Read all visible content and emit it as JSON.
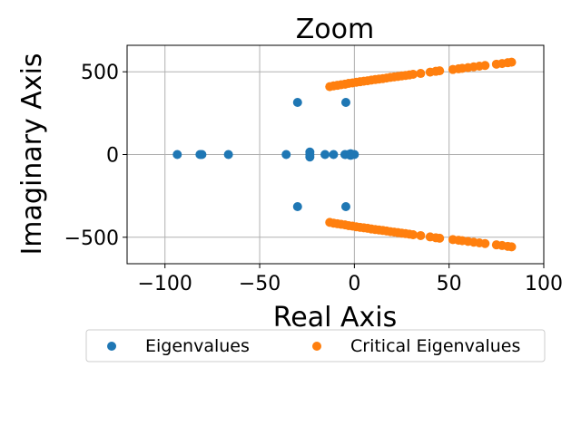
{
  "chart_data": {
    "type": "scatter",
    "title": "Zoom",
    "xlabel": "Real Axis",
    "ylabel": "Imaginary Axis",
    "xlim": [
      -120,
      100
    ],
    "ylim": [
      -660,
      660
    ],
    "xticks": [
      -100,
      -50,
      0,
      50,
      100
    ],
    "xtick_labels": [
      "−100",
      "−50",
      "0",
      "50",
      "100"
    ],
    "yticks": [
      -500,
      0,
      500
    ],
    "ytick_labels": [
      "−500",
      "0",
      "500"
    ],
    "grid": true,
    "legend": {
      "position": "below",
      "ncol": 2
    },
    "series": [
      {
        "name": "Eigenvalues",
        "color": "#1f77b4",
        "points": [
          [
            -93.5,
            0
          ],
          [
            -80.5,
            0
          ],
          [
            -81.5,
            0
          ],
          [
            -66.5,
            0
          ],
          [
            -36,
            0
          ],
          [
            -30,
            315
          ],
          [
            -30,
            -315
          ],
          [
            -23.5,
            15
          ],
          [
            -23.5,
            -15
          ],
          [
            -23.5,
            0
          ],
          [
            -15.5,
            0
          ],
          [
            -11,
            0
          ],
          [
            -5,
            0
          ],
          [
            -4.5,
            315
          ],
          [
            -4.5,
            -315
          ],
          [
            -3,
            0
          ],
          [
            -2,
            5
          ],
          [
            -2,
            -5
          ],
          [
            -1,
            0
          ],
          [
            0,
            0
          ]
        ]
      },
      {
        "name": "Critical Eigenvalues",
        "color": "#ff7f0e",
        "points": [
          [
            -13,
            410
          ],
          [
            -11,
            415
          ],
          [
            -9,
            418
          ],
          [
            -7,
            422
          ],
          [
            -5,
            425
          ],
          [
            -3,
            430
          ],
          [
            -1,
            433
          ],
          [
            1,
            437
          ],
          [
            3,
            440
          ],
          [
            5,
            443
          ],
          [
            7,
            446
          ],
          [
            9,
            450
          ],
          [
            11,
            453
          ],
          [
            13,
            456
          ],
          [
            15,
            459
          ],
          [
            17,
            462
          ],
          [
            19,
            466
          ],
          [
            21,
            469
          ],
          [
            23,
            472
          ],
          [
            25,
            475
          ],
          [
            27,
            478
          ],
          [
            29,
            481
          ],
          [
            31,
            485
          ],
          [
            35,
            490
          ],
          [
            40,
            498
          ],
          [
            43,
            503
          ],
          [
            45,
            506
          ],
          [
            52,
            514
          ],
          [
            55,
            518
          ],
          [
            57,
            521
          ],
          [
            60,
            525
          ],
          [
            63,
            530
          ],
          [
            66,
            534
          ],
          [
            69,
            538
          ],
          [
            75,
            546
          ],
          [
            78,
            550
          ],
          [
            81,
            555
          ],
          [
            83,
            558
          ],
          [
            -13,
            -410
          ],
          [
            -11,
            -415
          ],
          [
            -9,
            -418
          ],
          [
            -7,
            -422
          ],
          [
            -5,
            -425
          ],
          [
            -3,
            -430
          ],
          [
            -1,
            -433
          ],
          [
            1,
            -437
          ],
          [
            3,
            -440
          ],
          [
            5,
            -443
          ],
          [
            7,
            -446
          ],
          [
            9,
            -450
          ],
          [
            11,
            -453
          ],
          [
            13,
            -456
          ],
          [
            15,
            -459
          ],
          [
            17,
            -462
          ],
          [
            19,
            -466
          ],
          [
            21,
            -469
          ],
          [
            23,
            -472
          ],
          [
            25,
            -475
          ],
          [
            27,
            -478
          ],
          [
            29,
            -481
          ],
          [
            31,
            -485
          ],
          [
            35,
            -490
          ],
          [
            40,
            -498
          ],
          [
            43,
            -503
          ],
          [
            45,
            -506
          ],
          [
            52,
            -514
          ],
          [
            55,
            -518
          ],
          [
            57,
            -521
          ],
          [
            60,
            -525
          ],
          [
            63,
            -530
          ],
          [
            66,
            -534
          ],
          [
            69,
            -538
          ],
          [
            75,
            -546
          ],
          [
            78,
            -550
          ],
          [
            81,
            -555
          ],
          [
            83,
            -558
          ]
        ]
      }
    ]
  }
}
